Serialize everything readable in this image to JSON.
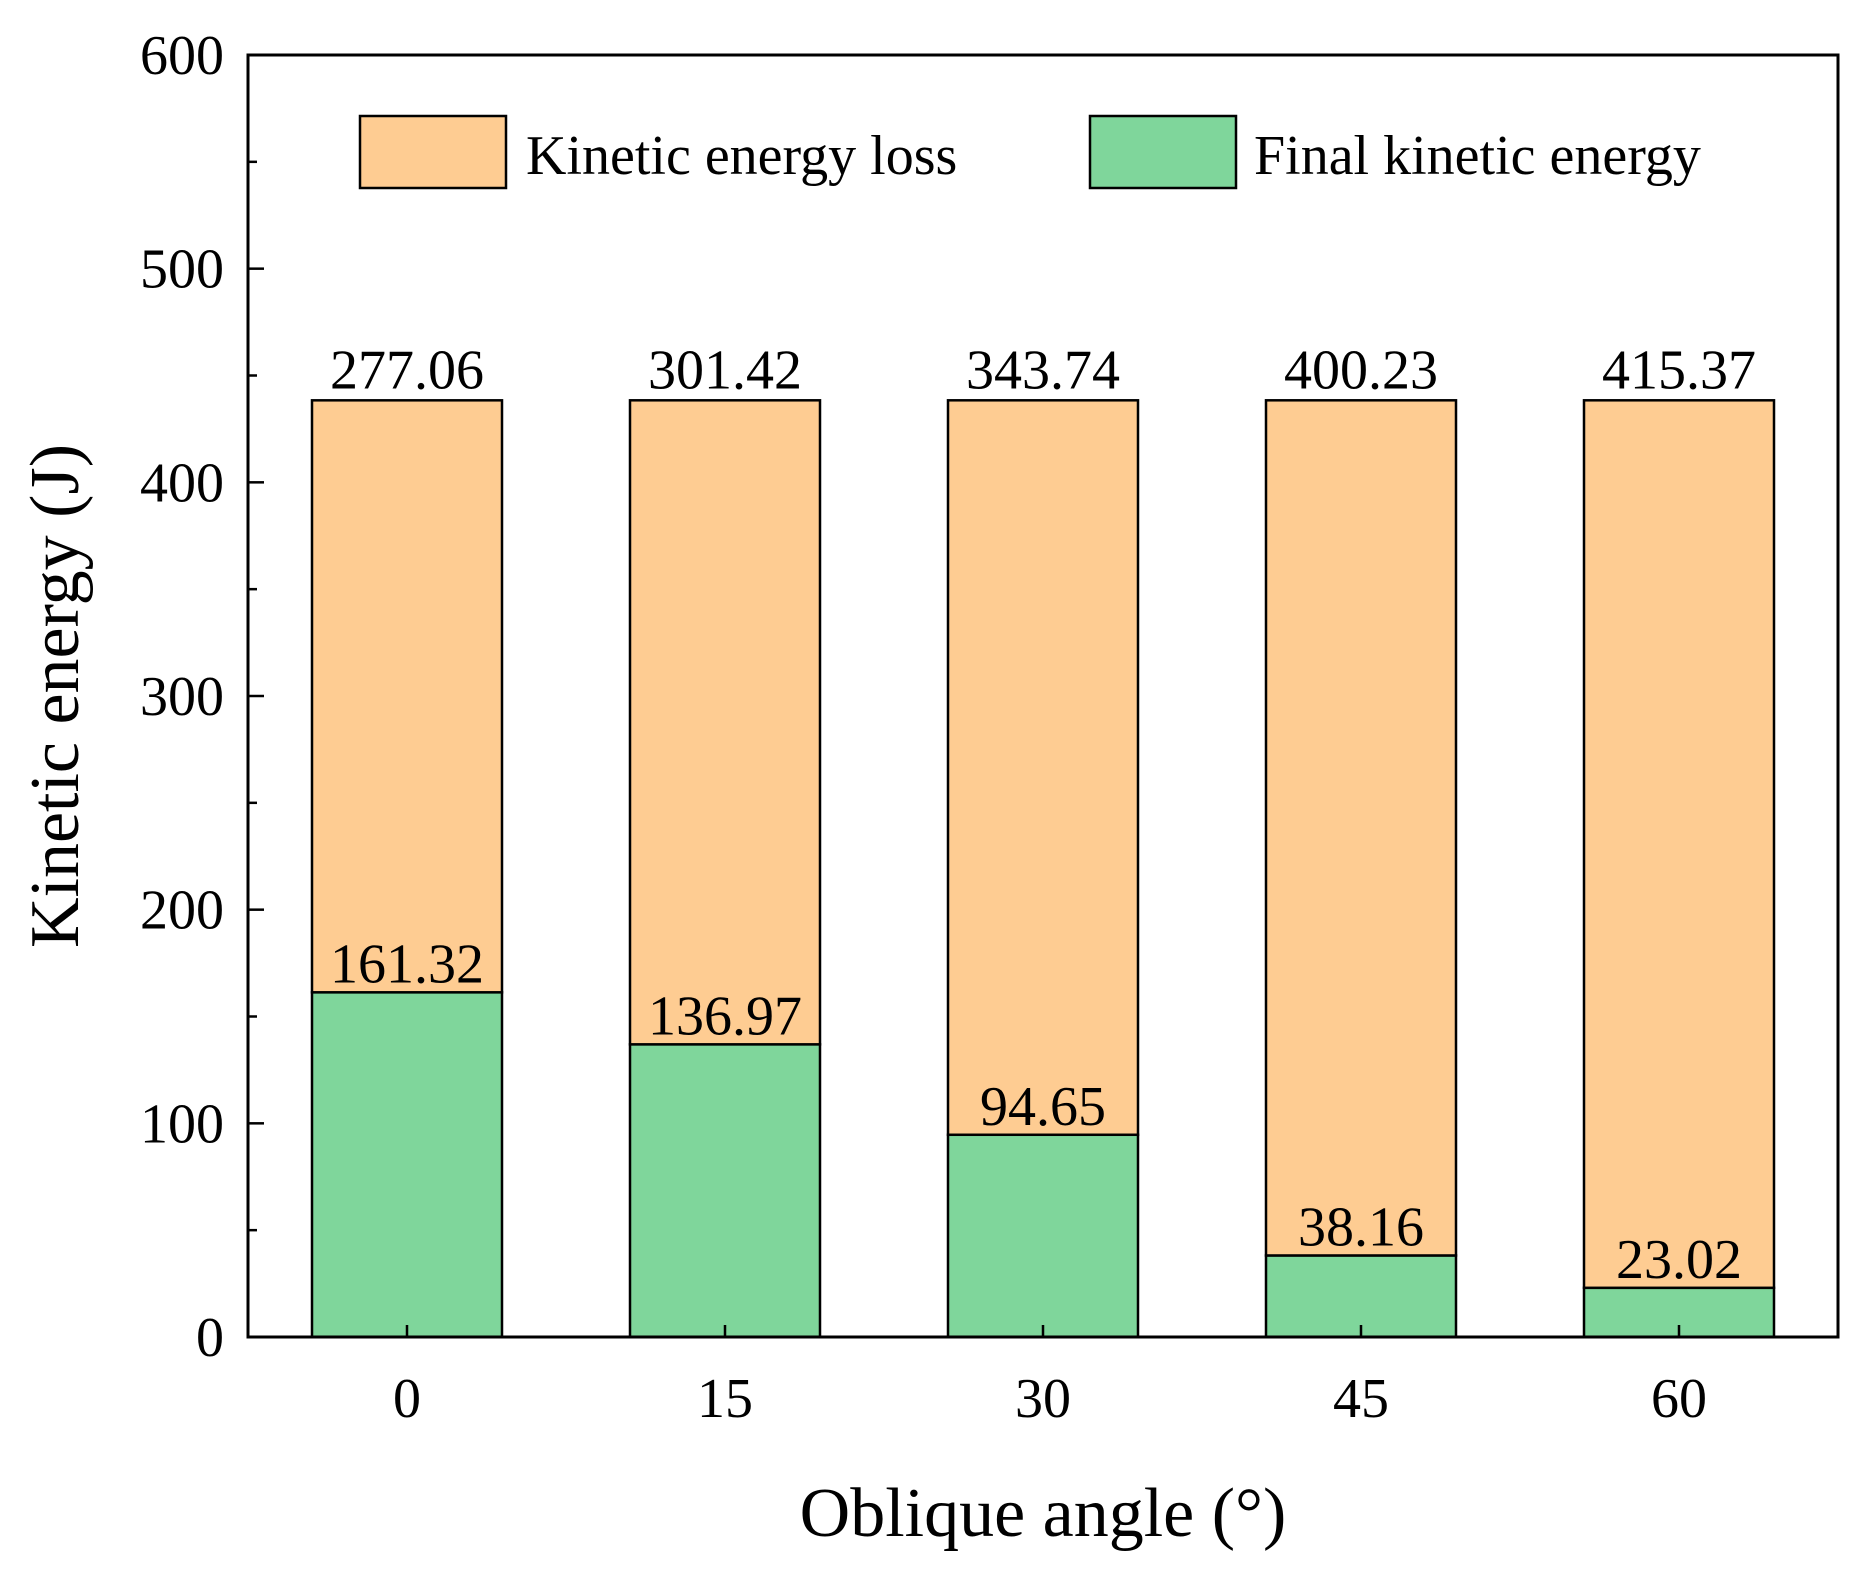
{
  "chart_data": {
    "type": "bar",
    "stacked": true,
    "categories": [
      "0",
      "15",
      "30",
      "45",
      "60"
    ],
    "series": [
      {
        "name": "Final kinetic energy",
        "color": "#7fd69b",
        "values": [
          161.32,
          136.97,
          94.65,
          38.16,
          23.02
        ]
      },
      {
        "name": "Kinetic energy loss",
        "color": "#fecc92",
        "values": [
          277.06,
          301.42,
          343.74,
          400.23,
          415.37
        ]
      }
    ],
    "xlabel": "Oblique angle (°)",
    "ylabel": "Kinetic energy (J)",
    "ylim": [
      0,
      600
    ],
    "yticks": [
      "0",
      "100",
      "200",
      "300",
      "400",
      "500",
      "600"
    ],
    "ytick_values": [
      0,
      100,
      200,
      300,
      400,
      500,
      600
    ],
    "legend": {
      "placement": "top",
      "entries": [
        "Kinetic energy loss",
        "Final kinetic energy"
      ]
    },
    "data_labels": {
      "loss": [
        "277.06",
        "301.42",
        "343.74",
        "400.23",
        "415.37"
      ],
      "final": [
        "161.32",
        "136.97",
        "94.65",
        "38.16",
        "23.02"
      ]
    }
  }
}
